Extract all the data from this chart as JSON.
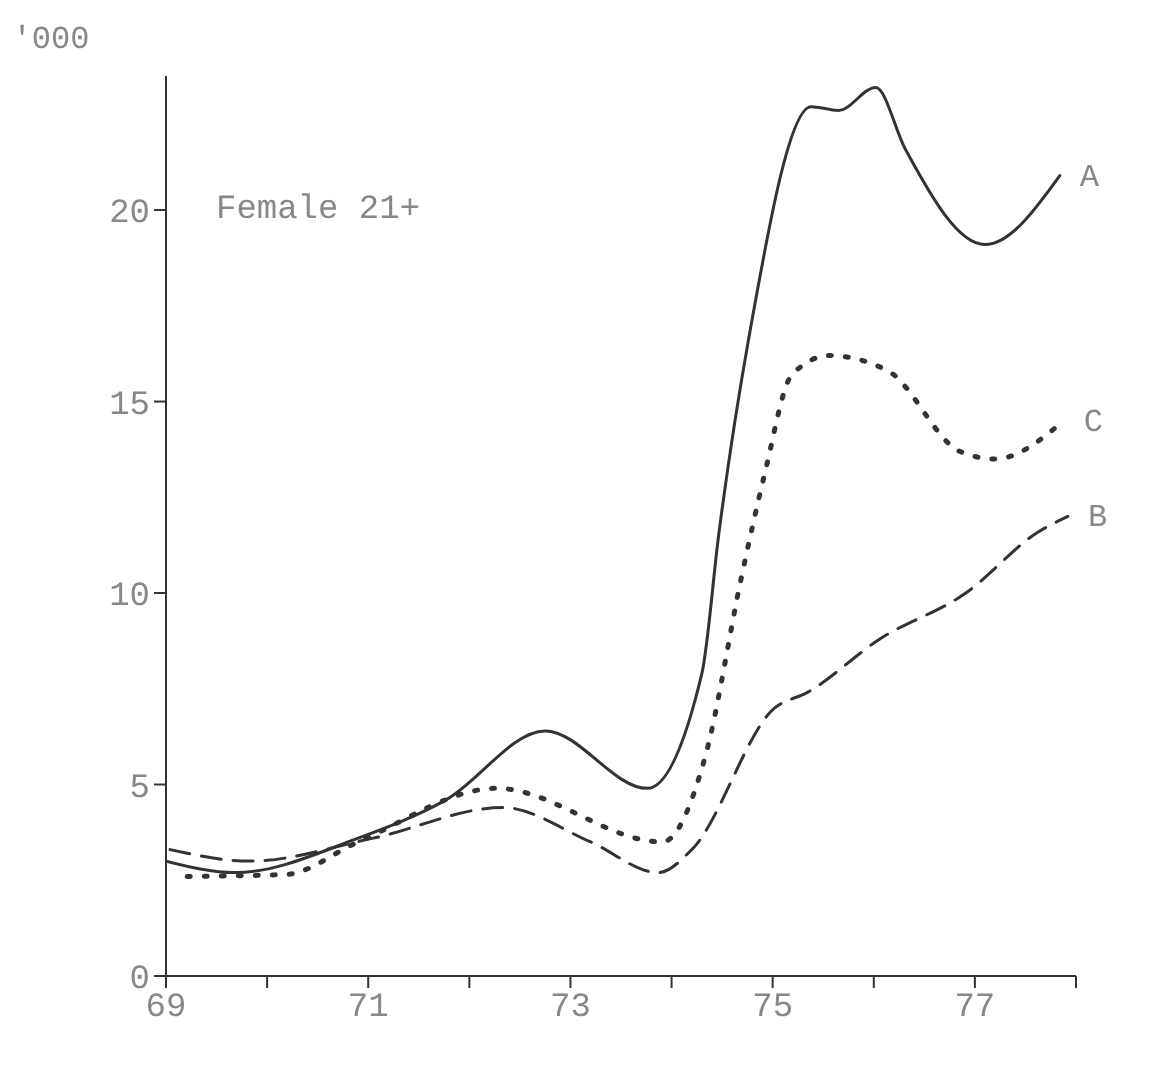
{
  "chart_data": {
    "type": "line",
    "ylabel": "'000",
    "annotations": [
      "Female 21+"
    ],
    "xlim": [
      69,
      78
    ],
    "xticks": [
      69,
      {
        "value": 70,
        "label": null
      },
      71,
      {
        "value": 72,
        "label": null
      },
      73,
      {
        "value": 74,
        "label": null
      },
      75,
      {
        "value": 76,
        "label": null
      },
      77,
      {
        "value": 78,
        "label": null
      }
    ],
    "ylim": [
      0,
      23.5
    ],
    "yticks": [
      0,
      5,
      10,
      15,
      20
    ],
    "marker": "none",
    "series": [
      {
        "name": "A",
        "color": "#333333",
        "line_style": "solid",
        "x": [
          69.0,
          69.68,
          70.9,
          71.77,
          72.75,
          73.76,
          74.3,
          74.47,
          74.76,
          75.38,
          75.65,
          76.02,
          76.31,
          77.1,
          77.84
        ],
        "values": [
          3.0,
          2.7,
          3.6,
          4.6,
          6.4,
          4.9,
          7.9,
          11.6,
          16.6,
          22.7,
          22.6,
          23.2,
          21.6,
          19.1,
          20.9
        ]
      },
      {
        "name": "C",
        "color": "#333333",
        "line_style": "dotted",
        "x": [
          69.21,
          70.18,
          70.9,
          72.27,
          73.91,
          74.34,
          74.69,
          74.92,
          75.19,
          75.56,
          76.14,
          76.85,
          77.2,
          77.88
        ],
        "values": [
          2.6,
          2.65,
          3.5,
          4.9,
          3.5,
          5.8,
          10.4,
          13.1,
          15.7,
          16.2,
          15.8,
          13.7,
          13.5,
          14.5
        ]
      },
      {
        "name": "B",
        "color": "#333333",
        "line_style": "dashed",
        "x": [
          69.04,
          69.83,
          71.05,
          72.33,
          73.2,
          73.87,
          74.2,
          75.02,
          75.34,
          76.06,
          76.91,
          77.63,
          77.92
        ],
        "values": [
          3.3,
          3.0,
          3.6,
          4.4,
          3.5,
          2.7,
          3.3,
          7.0,
          7.4,
          8.8,
          10.0,
          11.6,
          12.0
        ]
      }
    ]
  }
}
